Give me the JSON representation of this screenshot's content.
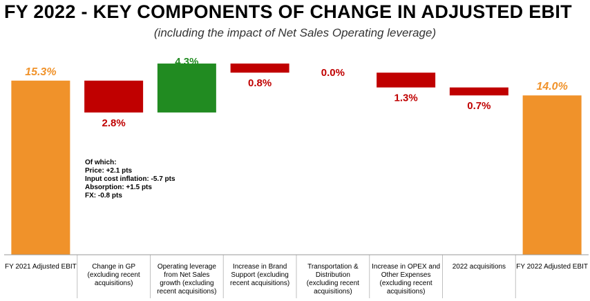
{
  "title": "FY 2022 - KEY COMPONENTS OF CHANGE IN ADJUSTED EBIT",
  "subtitle": "(including the impact of Net Sales Operating leverage)",
  "colors": {
    "total": "#F0922A",
    "decrease": "#C00000",
    "increase": "#218B21",
    "axis": "#999999",
    "divider": "#BFBFBF"
  },
  "note": {
    "lines": [
      "Of which:",
      "Price: +2.1 pts",
      "Input cost inflation: -5.7 pts",
      "Absorption: +1.5 pts",
      "FX: -0.8 pts"
    ]
  },
  "chart_data": {
    "type": "bar",
    "subtype": "waterfall",
    "unit": "%",
    "categories": [
      [
        "FY 2021 Adjusted EBIT"
      ],
      [
        "Change in GP",
        "(excluding recent",
        "acquisitions)"
      ],
      [
        "Operating leverage",
        "from Net Sales",
        "growth (excluding",
        "recent acquisitions)"
      ],
      [
        "Increase in Brand",
        "Support (excluding",
        "recent acquisitions)"
      ],
      [
        "Transportation &",
        "Distribution",
        "(excluding recent",
        "acquisitions)"
      ],
      [
        "Increase in OPEX and",
        "Other Expenses",
        "(excluding recent",
        "acquisitions)"
      ],
      [
        "2022 acquisitions"
      ],
      [
        "FY 2022 Adjusted EBIT"
      ]
    ],
    "values": [
      15.3,
      -2.8,
      4.3,
      -0.8,
      0.0,
      -1.3,
      -0.7,
      14.0
    ],
    "kinds": [
      "total",
      "decrease",
      "increase",
      "decrease",
      "decrease",
      "decrease",
      "decrease",
      "total"
    ],
    "data_labels": [
      "15.3%",
      "2.8%",
      "4.3%",
      "0.8%",
      "0.0%",
      "1.3%",
      "0.7%",
      "14.0%"
    ],
    "ylim": [
      0,
      16.5
    ],
    "xlabel": "",
    "ylabel": ""
  }
}
